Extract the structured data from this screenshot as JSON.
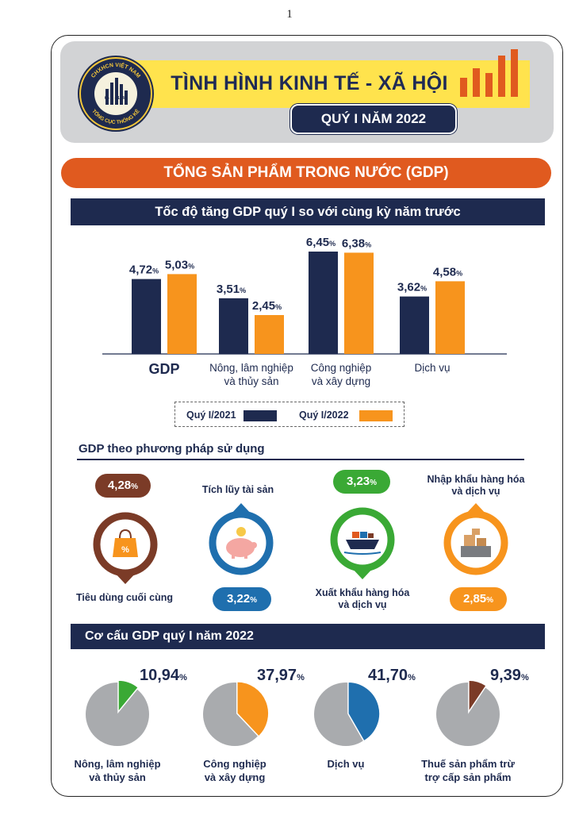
{
  "page_number": "1",
  "header": {
    "title": "TÌNH HÌNH KINH TẾ - XÃ HỘI",
    "period": "QUÝ I NĂM 2022",
    "logo": {
      "top_text": "CHXHCN VIỆT NAM",
      "date_text": "6 - 5 - 1946",
      "bottom_text": "TỔNG CỤC THỐNG KÊ"
    },
    "icon": "bar-chart-icon"
  },
  "section_banner": "TỔNG SẢN PHẨM TRONG NƯỚC (GDP)",
  "colors": {
    "navy": "#1e2a4f",
    "orange": "#f7941d",
    "red_orange": "#e05a1f",
    "brown": "#7b3b27",
    "green": "#3aa935",
    "blue": "#1f6fae",
    "yellow": "#ffe34d",
    "grey": "#a9abae"
  },
  "growth": {
    "title": "Tốc độ tăng GDP quý I so với cùng kỳ năm trước",
    "legend": [
      "Quý I/2021",
      "Quý I/2022"
    ]
  },
  "chart_data": [
    {
      "type": "bar",
      "title": "Tốc độ tăng GDP quý I so với cùng kỳ năm trước",
      "categories": [
        "GDP",
        "Nông, lâm nghiệp và thủy sản",
        "Công nghiệp và xây dựng",
        "Dịch vụ"
      ],
      "category_lines": [
        [
          "GDP"
        ],
        [
          "Nông, lâm nghiệp",
          "và thủy sản"
        ],
        [
          "Công nghiệp",
          "và xây dựng"
        ],
        [
          "Dịch vụ"
        ]
      ],
      "series": [
        {
          "name": "Quý I/2021",
          "color": "#1e2a4f",
          "values": [
            4.72,
            3.51,
            6.45,
            3.62
          ],
          "labels": [
            "4,72",
            "3,51",
            "6,45",
            "3,62"
          ]
        },
        {
          "name": "Quý I/2022",
          "color": "#f7941d",
          "values": [
            5.03,
            2.45,
            6.38,
            4.58
          ],
          "labels": [
            "5,03",
            "2,45",
            "6,38",
            "4,58"
          ]
        }
      ],
      "unit": "%",
      "ylim": [
        0,
        7
      ],
      "grid": false,
      "legend_position": "bottom"
    },
    {
      "type": "pie",
      "title": "Cơ cấu GDP quý I năm 2022",
      "slices": [
        {
          "label": "Nông, lâm nghiệp và thủy sản",
          "value": 10.94,
          "value_text": "10,94",
          "color": "#3aa935"
        },
        {
          "label": "Công nghiệp và xây dựng",
          "value": 37.97,
          "value_text": "37,97",
          "color": "#f7941d"
        },
        {
          "label": "Dịch vụ",
          "value": 41.7,
          "value_text": "41,70",
          "color": "#1f6fae"
        },
        {
          "label": "Thuế sản phẩm trừ trợ cấp sản phẩm",
          "value": 9.39,
          "value_text": "9,39",
          "color": "#7b3b27"
        }
      ],
      "unit": "%"
    }
  ],
  "usage": {
    "title": "GDP theo phương pháp sử dụng",
    "items": [
      {
        "label": "Tiêu dùng cuối cùng",
        "value": "4,28",
        "unit": "%",
        "color": "#7b3b27",
        "icon": "shopping-bag-icon"
      },
      {
        "label": "Tích lũy tài sản",
        "value": "3,22",
        "unit": "%",
        "color": "#1f6fae",
        "icon": "piggy-bank-icon"
      },
      {
        "label_lines": [
          "Xuất khẩu hàng hóa",
          "và dịch vụ"
        ],
        "value": "3,23",
        "unit": "%",
        "color": "#3aa935",
        "icon": "cargo-ship-icon"
      },
      {
        "label_lines": [
          "Nhập khẩu hàng hóa",
          "và dịch vụ"
        ],
        "value": "2,85",
        "unit": "%",
        "color": "#f7941d",
        "icon": "scale-boxes-icon"
      }
    ]
  },
  "structure": {
    "title": "Cơ cấu GDP quý I năm 2022",
    "label_lines": [
      [
        "Nông, lâm nghiệp",
        "và thủy sản"
      ],
      [
        "Công nghiệp",
        "và xây dựng"
      ],
      [
        "Dịch vụ"
      ],
      [
        "Thuế sản phẩm trừ",
        "trợ cấp sản phẩm"
      ]
    ]
  }
}
